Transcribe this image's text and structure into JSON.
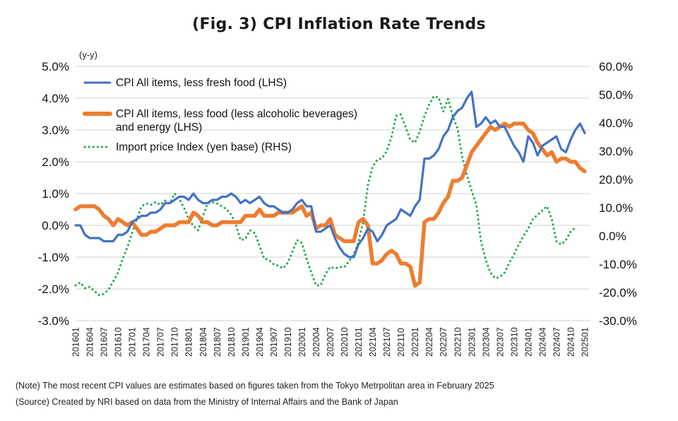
{
  "title": "(Fig. 3) CPI Inflation Rate Trends",
  "notes": {
    "note": "(Note) The most recent CPI values are estimates based on figures taken from the Tokyo Metrpolitan area in February 2025",
    "source": "(Source) Created by NRI based on data from the Ministry of Internal Affairs and the Bank of Japan"
  },
  "chart_data": {
    "type": "line",
    "title": "(Fig. 3) CPI Inflation Rate Trends",
    "unit_label": "(y-y)",
    "y_left": {
      "ticks": [
        "5.0%",
        "4.0%",
        "3.0%",
        "2.0%",
        "1.0%",
        "0.0%",
        "-1.0%",
        "-2.0%",
        "-3.0%"
      ],
      "range": [
        -3.0,
        5.0
      ]
    },
    "y_right": {
      "ticks": [
        "60.0%",
        "50.0%",
        "40.0%",
        "30.0%",
        "20.0%",
        "10.0%",
        "0.0%",
        "-10.0%",
        "-20.0%",
        "-30.0%"
      ],
      "range": [
        -30.0,
        60.0
      ]
    },
    "x_ticks": [
      "201601",
      "201604",
      "201607",
      "201610",
      "201701",
      "201704",
      "201707",
      "201710",
      "201801",
      "201804",
      "201807",
      "201810",
      "201901",
      "201904",
      "201907",
      "201910",
      "202001",
      "202004",
      "202007",
      "202010",
      "202101",
      "202104",
      "202107",
      "202110",
      "202201",
      "202204",
      "202207",
      "202210",
      "202301",
      "202304",
      "202307",
      "202310",
      "202401",
      "202404",
      "202407",
      "202410",
      "202501"
    ],
    "x_start": "201601",
    "grid": true,
    "legend_position": "top-left",
    "series": [
      {
        "name": "CPI All items, less fresh food (LHS)",
        "axis": "left",
        "color": "#4472c4",
        "style": "solid",
        "values": [
          0.0,
          0.0,
          -0.3,
          -0.4,
          -0.4,
          -0.4,
          -0.5,
          -0.5,
          -0.5,
          -0.3,
          -0.3,
          -0.2,
          0.1,
          0.2,
          0.3,
          0.3,
          0.4,
          0.4,
          0.5,
          0.7,
          0.7,
          0.8,
          0.9,
          0.9,
          0.8,
          1.0,
          0.8,
          0.7,
          0.7,
          0.8,
          0.8,
          0.9,
          0.9,
          1.0,
          0.9,
          0.7,
          0.8,
          0.7,
          0.8,
          0.9,
          0.7,
          0.6,
          0.6,
          0.5,
          0.4,
          0.4,
          0.5,
          0.7,
          0.8,
          0.6,
          0.6,
          -0.2,
          -0.2,
          -0.1,
          0.0,
          -0.4,
          -0.7,
          -0.9,
          -1.0,
          -1.0,
          -0.6,
          -0.4,
          -0.1,
          -0.2,
          -0.5,
          -0.3,
          0.0,
          0.1,
          0.2,
          0.5,
          0.4,
          0.3,
          0.6,
          0.8,
          2.1,
          2.1,
          2.2,
          2.4,
          2.8,
          3.0,
          3.4,
          3.6,
          3.7,
          4.0,
          4.2,
          3.1,
          3.2,
          3.4,
          3.2,
          3.3,
          3.1,
          3.1,
          2.8,
          2.5,
          2.3,
          2.0,
          2.8,
          2.6,
          2.2,
          2.5,
          2.6,
          2.7,
          2.8,
          2.4,
          2.3,
          2.7,
          3.0,
          3.2,
          2.9
        ],
        "note": "values estimated from plot, monthly from 201601"
      },
      {
        "name": "CPI All items, less food (less alcoholic beverages) and energy (LHS)",
        "axis": "left",
        "color": "#ed7d31",
        "style": "thick",
        "values": [
          0.5,
          0.6,
          0.6,
          0.6,
          0.6,
          0.5,
          0.3,
          0.2,
          0.0,
          0.2,
          0.1,
          0.0,
          0.1,
          -0.1,
          -0.3,
          -0.3,
          -0.2,
          -0.2,
          -0.1,
          0.0,
          0.0,
          0.0,
          0.1,
          0.1,
          0.1,
          0.4,
          0.3,
          0.1,
          0.1,
          0.0,
          0.0,
          0.1,
          0.1,
          0.1,
          0.1,
          0.1,
          0.3,
          0.3,
          0.3,
          0.5,
          0.3,
          0.3,
          0.3,
          0.4,
          0.4,
          0.4,
          0.4,
          0.5,
          0.6,
          0.3,
          0.4,
          -0.1,
          0.0,
          0.0,
          0.2,
          -0.3,
          -0.4,
          -0.5,
          -0.5,
          -0.5,
          0.1,
          0.2,
          0.0,
          -1.2,
          -1.2,
          -1.1,
          -0.9,
          -0.8,
          -0.9,
          -1.2,
          -1.2,
          -1.3,
          -1.9,
          -1.8,
          0.1,
          0.2,
          0.2,
          0.4,
          0.7,
          0.9,
          1.4,
          1.4,
          1.5,
          1.9,
          2.3,
          2.5,
          2.7,
          2.9,
          3.1,
          3.0,
          3.1,
          3.2,
          3.1,
          3.2,
          3.2,
          3.2,
          3.0,
          2.9,
          2.6,
          2.4,
          2.2,
          2.3,
          2.0,
          2.1,
          2.1,
          2.0,
          2.0,
          1.8,
          1.7
        ],
        "note": "values estimated from plot, monthly from 201601"
      },
      {
        "name": "Import price Index (yen base) (RHS)",
        "axis": "right",
        "color": "#1aa84a",
        "style": "dotted",
        "values": [
          -17.5,
          -16.5,
          -18.5,
          -18.0,
          -19.5,
          -21.0,
          -20.5,
          -19.0,
          -16.0,
          -13.0,
          -8.0,
          -4.0,
          1.0,
          6.0,
          10.5,
          11.5,
          11.0,
          12.0,
          11.0,
          12.5,
          11.5,
          15.0,
          13.0,
          10.0,
          6.0,
          3.5,
          2.0,
          7.0,
          11.5,
          12.0,
          11.5,
          10.5,
          9.5,
          7.5,
          4.0,
          -1.5,
          -1.0,
          2.0,
          1.0,
          -3.5,
          -8.0,
          -8.5,
          -10.0,
          -10.5,
          -11.5,
          -9.5,
          -5.5,
          -1.5,
          -2.5,
          -8.0,
          -13.0,
          -17.5,
          -17.5,
          -13.5,
          -11.0,
          -11.5,
          -11.0,
          -11.0,
          -9.0,
          -6.5,
          -2.0,
          5.0,
          18.0,
          24.5,
          27.0,
          27.5,
          30.0,
          35.0,
          42.5,
          43.0,
          38.5,
          34.0,
          33.0,
          37.0,
          42.5,
          46.5,
          49.5,
          49.0,
          44.0,
          48.5,
          42.5,
          38.0,
          28.0,
          21.5,
          16.0,
          11.0,
          -2.0,
          -8.5,
          -13.0,
          -15.0,
          -14.5,
          -13.0,
          -9.5,
          -6.5,
          -3.0,
          0.0,
          2.5,
          6.0,
          7.5,
          9.0,
          10.5,
          6.0,
          -2.0,
          -3.0,
          -1.5,
          1.5,
          3.0
        ],
        "note": "values estimated from plot, monthly from 201601"
      }
    ]
  }
}
